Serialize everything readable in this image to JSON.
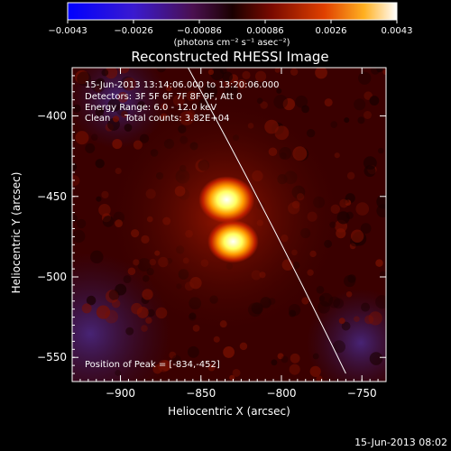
{
  "chart_data": {
    "type": "heatmap",
    "title": "Reconstructed RHESSI Image",
    "xlabel": "Heliocentric X (arcsec)",
    "ylabel": "Heliocentric Y (arcsec)",
    "xlim": [
      -930,
      -735
    ],
    "ylim": [
      -565,
      -370
    ],
    "x_ticks": [
      -900,
      -850,
      -800,
      -750
    ],
    "x_tick_labels": [
      "−900",
      "−850",
      "−800",
      "−750"
    ],
    "y_ticks": [
      -400,
      -450,
      -500,
      -550
    ],
    "y_tick_labels": [
      "−400",
      "−450",
      "−500",
      "−550"
    ],
    "colorbar": {
      "min": -0.0043,
      "max": 0.0043,
      "tick_labels": [
        "−0.0043",
        "−0.0026",
        "−0.00086",
        "0.00086",
        "0.0026",
        "0.0043"
      ],
      "unit_label": "(photons cm⁻² s⁻¹ asec⁻²)"
    },
    "sources": [
      {
        "x": -834,
        "y": -452,
        "intensity": 1.0
      },
      {
        "x": -830,
        "y": -478,
        "intensity": 0.9
      }
    ],
    "limb_line": [
      [
        -858,
        -370
      ],
      [
        -760,
        -560
      ]
    ],
    "info_lines": [
      "15-Jun-2013 13:14:06.000 to 13:20:06.000",
      "Detectors: 3F 5F 6F 7F 8F 9F, Att 0",
      "Energy Range: 6.0 - 12.0 keV",
      "Clean     Total counts: 3.82E+04"
    ],
    "peak_label": "Position of Peak = [-834,-452]",
    "timestamp": "15-Jun-2013 08:02"
  }
}
